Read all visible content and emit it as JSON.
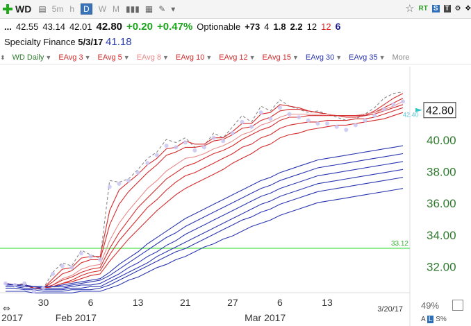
{
  "toolbar": {
    "symbol": "WD",
    "timeframes": [
      "5m",
      "h",
      "D",
      "W",
      "M"
    ],
    "active_timeframe": "D",
    "right_labels": [
      "RT"
    ]
  },
  "quote": {
    "lead": "...",
    "open": "42.55",
    "high": "43.14",
    "low": "42.01",
    "last": "42.80",
    "change": "+0.20",
    "change_pct": "+0.47%",
    "optionable": "Optionable",
    "rank": "+73",
    "v1": "4",
    "v2": "1.8",
    "v3": "2.2",
    "v4": "12",
    "v5": "12",
    "v6": "6"
  },
  "info": {
    "sector": "Specialty Finance",
    "date": "5/3/17",
    "price": "41.18"
  },
  "legend": {
    "items": [
      {
        "label": "WD Daily",
        "color": "#2f7a2f"
      },
      {
        "label": "EAvg 3",
        "color": "#d42a2a"
      },
      {
        "label": "EAvg 5",
        "color": "#d42a2a"
      },
      {
        "label": "EAvg 8",
        "color": "#e88a8a"
      },
      {
        "label": "EAvg 10",
        "color": "#d42a2a"
      },
      {
        "label": "EAvg 12",
        "color": "#d42a2a"
      },
      {
        "label": "EAvg 15",
        "color": "#d42a2a"
      },
      {
        "label": "EAvg 30",
        "color": "#2a36b0"
      },
      {
        "label": "EAvg 35",
        "color": "#2a36b0"
      }
    ],
    "more": "More"
  },
  "footer": {
    "zoom": "49%",
    "scale_labels": [
      "A",
      "L",
      "S%"
    ]
  },
  "chart_data": {
    "type": "line",
    "ylim": [
      30.4,
      44.6
    ],
    "yticks": [
      32.0,
      34.0,
      36.0,
      38.0,
      40.0
    ],
    "ytick_labels": [
      "32.00",
      "34.00",
      "36.00",
      "38.00",
      "40.00"
    ],
    "xticks": [
      "30",
      "6",
      "13",
      "21",
      "27",
      "6",
      "13"
    ],
    "xtick_index": [
      4,
      9,
      14,
      19,
      24,
      29,
      34
    ],
    "period_labels": [
      {
        "label": "2017",
        "index": 0
      },
      {
        "label": "Feb 2017",
        "index": 6
      },
      {
        "label": "Mar 2017",
        "index": 26
      }
    ],
    "last_date": "3/20/17",
    "last_price": "42.80",
    "dashed_label": "42.40",
    "hline": {
      "value": 33.12,
      "label": "33.12",
      "color": "#33dd33"
    },
    "series": [
      {
        "color": "#888888",
        "dashed": true,
        "values": [
          30.9,
          30.8,
          30.9,
          30.5,
          30.6,
          31.6,
          32.2,
          32.0,
          33.0,
          32.7,
          32.5,
          37.4,
          37.3,
          37.5,
          38.1,
          38.8,
          39.2,
          40.0,
          39.8,
          40.1,
          39.5,
          39.6,
          40.4,
          40.1,
          40.8,
          41.5,
          41.1,
          42.1,
          41.8,
          42.5,
          42.1,
          41.9,
          41.7,
          41.8,
          41.6,
          41.4,
          41.2,
          41.3,
          41.6,
          42.0,
          42.6,
          42.9,
          43.0
        ]
      },
      {
        "color": "#d42a2a",
        "values": [
          30.9,
          30.8,
          30.8,
          30.6,
          30.6,
          31.2,
          31.8,
          31.9,
          32.5,
          32.6,
          32.6,
          35.5,
          36.8,
          37.3,
          37.8,
          38.4,
          38.8,
          39.4,
          39.5,
          39.9,
          39.7,
          39.7,
          40.1,
          40.1,
          40.5,
          41.0,
          41.0,
          41.6,
          41.7,
          42.2,
          42.1,
          42.0,
          41.8,
          41.7,
          41.6,
          41.5,
          41.4,
          41.4,
          41.5,
          41.8,
          42.2,
          42.6,
          42.9
        ]
      },
      {
        "color": "#d42a2a",
        "values": [
          30.9,
          30.8,
          30.8,
          30.6,
          30.6,
          31.0,
          31.5,
          31.7,
          32.2,
          32.4,
          32.4,
          34.6,
          35.9,
          36.7,
          37.3,
          37.9,
          38.4,
          39.0,
          39.2,
          39.5,
          39.5,
          39.6,
          39.9,
          40.0,
          40.3,
          40.7,
          40.8,
          41.2,
          41.4,
          41.8,
          41.9,
          41.9,
          41.8,
          41.7,
          41.6,
          41.5,
          41.5,
          41.5,
          41.6,
          41.7,
          42.0,
          42.3,
          42.6
        ]
      },
      {
        "color": "#e88a8a",
        "values": [
          30.9,
          30.8,
          30.8,
          30.6,
          30.6,
          30.8,
          31.2,
          31.4,
          31.8,
          32.0,
          32.1,
          33.6,
          34.7,
          35.5,
          36.2,
          36.9,
          37.4,
          38.0,
          38.4,
          38.8,
          38.9,
          39.1,
          39.4,
          39.6,
          39.9,
          40.3,
          40.5,
          40.9,
          41.1,
          41.4,
          41.6,
          41.6,
          41.6,
          41.6,
          41.6,
          41.5,
          41.5,
          41.5,
          41.6,
          41.7,
          41.9,
          42.1,
          42.4
        ]
      },
      {
        "color": "#d42a2a",
        "values": [
          30.9,
          30.8,
          30.8,
          30.6,
          30.6,
          30.8,
          31.1,
          31.3,
          31.6,
          31.8,
          31.9,
          33.1,
          34.1,
          34.9,
          35.7,
          36.3,
          36.9,
          37.5,
          37.9,
          38.3,
          38.5,
          38.8,
          39.1,
          39.3,
          39.6,
          40.0,
          40.3,
          40.6,
          40.8,
          41.2,
          41.4,
          41.4,
          41.5,
          41.5,
          41.5,
          41.5,
          41.5,
          41.5,
          41.5,
          41.6,
          41.8,
          42.0,
          42.2
        ]
      },
      {
        "color": "#d42a2a",
        "values": [
          30.9,
          30.8,
          30.8,
          30.6,
          30.6,
          30.7,
          30.9,
          31.1,
          31.4,
          31.6,
          31.7,
          32.7,
          33.6,
          34.3,
          35.0,
          35.7,
          36.2,
          36.8,
          37.3,
          37.7,
          37.9,
          38.2,
          38.5,
          38.8,
          39.1,
          39.5,
          39.7,
          40.1,
          40.3,
          40.7,
          40.9,
          41.0,
          41.1,
          41.1,
          41.2,
          41.2,
          41.2,
          41.3,
          41.3,
          41.4,
          41.6,
          41.8,
          42.0
        ]
      },
      {
        "color": "#d42a2a",
        "values": [
          30.9,
          30.8,
          30.8,
          30.6,
          30.6,
          30.7,
          30.9,
          31.0,
          31.2,
          31.4,
          31.5,
          32.3,
          33.0,
          33.7,
          34.3,
          34.9,
          35.5,
          36.0,
          36.5,
          36.9,
          37.2,
          37.5,
          37.8,
          38.1,
          38.5,
          38.8,
          39.1,
          39.5,
          39.7,
          40.1,
          40.3,
          40.4,
          40.6,
          40.7,
          40.8,
          40.9,
          40.9,
          41.0,
          41.1,
          41.2,
          41.3,
          41.5,
          41.7
        ]
      },
      {
        "color": "#2a36b0",
        "values": [
          30.9,
          30.8,
          30.8,
          30.7,
          30.7,
          30.7,
          30.8,
          30.9,
          31.0,
          31.1,
          31.2,
          31.6,
          32.1,
          32.5,
          32.9,
          33.4,
          33.8,
          34.2,
          34.6,
          35.0,
          35.3,
          35.6,
          35.9,
          36.2,
          36.5,
          36.8,
          37.1,
          37.4,
          37.6,
          37.9,
          38.1,
          38.3,
          38.5,
          38.7,
          38.8,
          38.9,
          39.0,
          39.1,
          39.2,
          39.3,
          39.4,
          39.5,
          39.6
        ]
      },
      {
        "color": "#2a36b0",
        "values": [
          30.8,
          30.8,
          30.8,
          30.7,
          30.7,
          30.7,
          30.7,
          30.8,
          30.9,
          31.0,
          31.1,
          31.4,
          31.8,
          32.2,
          32.6,
          33.0,
          33.4,
          33.8,
          34.1,
          34.5,
          34.8,
          35.1,
          35.4,
          35.7,
          36.0,
          36.3,
          36.6,
          36.9,
          37.1,
          37.4,
          37.6,
          37.8,
          38.0,
          38.2,
          38.3,
          38.4,
          38.5,
          38.6,
          38.7,
          38.8,
          38.9,
          39.0,
          39.1
        ]
      },
      {
        "color": "#2a36b0",
        "values": [
          30.8,
          30.8,
          30.7,
          30.7,
          30.6,
          30.6,
          30.6,
          30.7,
          30.8,
          30.8,
          30.9,
          31.2,
          31.5,
          31.9,
          32.2,
          32.6,
          32.9,
          33.3,
          33.6,
          34.0,
          34.3,
          34.6,
          34.9,
          35.2,
          35.5,
          35.8,
          36.1,
          36.4,
          36.6,
          36.9,
          37.1,
          37.3,
          37.5,
          37.7,
          37.8,
          37.9,
          38.0,
          38.1,
          38.2,
          38.3,
          38.4,
          38.5,
          38.6
        ]
      },
      {
        "color": "#2a36b0",
        "values": [
          30.7,
          30.7,
          30.6,
          30.6,
          30.5,
          30.5,
          30.5,
          30.6,
          30.6,
          30.7,
          30.7,
          31.0,
          31.3,
          31.6,
          31.9,
          32.2,
          32.6,
          32.9,
          33.2,
          33.5,
          33.8,
          34.1,
          34.4,
          34.7,
          35.0,
          35.3,
          35.6,
          35.9,
          36.1,
          36.4,
          36.6,
          36.8,
          37.0,
          37.2,
          37.3,
          37.4,
          37.5,
          37.6,
          37.7,
          37.8,
          37.9,
          38.0,
          38.1
        ]
      },
      {
        "color": "#2a36b0",
        "values": [
          30.6,
          30.6,
          30.5,
          30.5,
          30.4,
          30.4,
          30.4,
          30.5,
          30.5,
          30.5,
          30.6,
          30.8,
          31.1,
          31.4,
          31.7,
          32.0,
          32.3,
          32.6,
          32.9,
          33.1,
          33.4,
          33.7,
          34.0,
          34.3,
          34.6,
          34.9,
          35.1,
          35.4,
          35.6,
          35.9,
          36.1,
          36.3,
          36.5,
          36.7,
          36.8,
          36.9,
          37.0,
          37.1,
          37.2,
          37.3,
          37.4,
          37.5,
          37.6
        ]
      },
      {
        "color": "#2a36b0",
        "values": [
          30.4,
          30.4,
          30.4,
          30.3,
          30.3,
          30.3,
          30.3,
          30.3,
          30.4,
          30.4,
          30.4,
          30.6,
          30.8,
          31.1,
          31.3,
          31.6,
          31.9,
          32.1,
          32.4,
          32.6,
          32.9,
          33.2,
          33.4,
          33.7,
          33.9,
          34.2,
          34.5,
          34.7,
          34.9,
          35.2,
          35.4,
          35.6,
          35.8,
          36.0,
          36.1,
          36.2,
          36.3,
          36.4,
          36.5,
          36.6,
          36.7,
          36.8,
          36.9
        ]
      }
    ],
    "closes": [
      30.9,
      30.8,
      30.9,
      30.4,
      30.6,
      31.5,
      32.0,
      31.9,
      32.8,
      32.6,
      32.4,
      37.0,
      37.2,
      37.4,
      37.9,
      38.5,
      39.0,
      39.6,
      39.5,
      39.8,
      39.3,
      39.5,
      40.1,
      39.9,
      40.4,
      41.1,
      40.8,
      41.7,
      41.3,
      42.0,
      41.6,
      41.4,
      41.2,
      41.0,
      41.0,
      40.8,
      40.6,
      40.9,
      41.2,
      41.5,
      41.9,
      42.2,
      42.4
    ]
  }
}
